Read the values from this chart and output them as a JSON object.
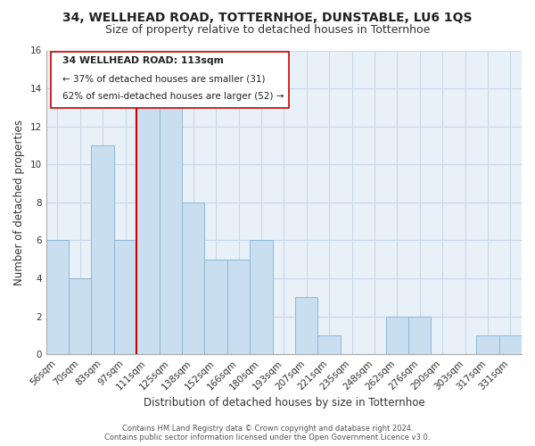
{
  "title": "34, WELLHEAD ROAD, TOTTERNHOE, DUNSTABLE, LU6 1QS",
  "subtitle": "Size of property relative to detached houses in Totternhoe",
  "xlabel": "Distribution of detached houses by size in Totternhoe",
  "ylabel": "Number of detached properties",
  "bar_labels": [
    "56sqm",
    "70sqm",
    "83sqm",
    "97sqm",
    "111sqm",
    "125sqm",
    "138sqm",
    "152sqm",
    "166sqm",
    "180sqm",
    "193sqm",
    "207sqm",
    "221sqm",
    "235sqm",
    "248sqm",
    "262sqm",
    "276sqm",
    "290sqm",
    "303sqm",
    "317sqm",
    "331sqm"
  ],
  "bar_values": [
    6,
    4,
    11,
    6,
    13,
    13,
    8,
    5,
    5,
    6,
    0,
    3,
    1,
    0,
    0,
    2,
    2,
    0,
    0,
    1,
    1
  ],
  "bar_color": "#c9dff0",
  "bar_edge_color": "#8cb8d8",
  "highlight_line_color": "#cc0000",
  "highlight_line_index": 3.5,
  "annotation_line1": "34 WELLHEAD ROAD: 113sqm",
  "annotation_line2": "← 37% of detached houses are smaller (31)",
  "annotation_line3": "62% of semi-detached houses are larger (52) →",
  "ylim": [
    0,
    16
  ],
  "yticks": [
    0,
    2,
    4,
    6,
    8,
    10,
    12,
    14,
    16
  ],
  "footer_line1": "Contains HM Land Registry data © Crown copyright and database right 2024.",
  "footer_line2": "Contains public sector information licensed under the Open Government Licence v3.0.",
  "background_color": "#ffffff",
  "plot_bg_color": "#e8f0f8",
  "grid_color": "#c8d8e8",
  "title_fontsize": 10,
  "subtitle_fontsize": 9,
  "axis_label_fontsize": 8.5,
  "tick_fontsize": 7.5
}
